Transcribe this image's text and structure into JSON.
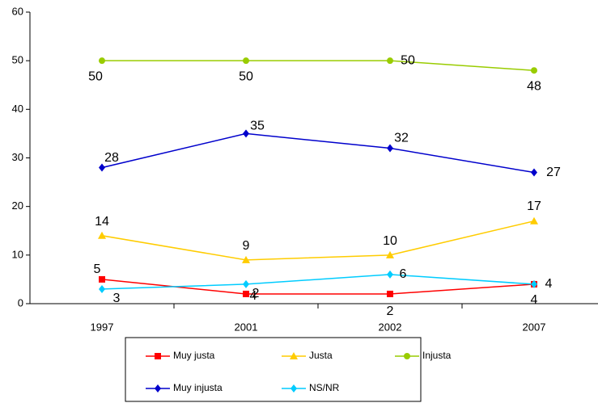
{
  "chart_data": {
    "type": "line",
    "categories": [
      "1997",
      "2001",
      "2002",
      "2007"
    ],
    "series": [
      {
        "name": "Muy justa",
        "color": "#ff0000",
        "marker": "square",
        "values": [
          5,
          2,
          2,
          4
        ]
      },
      {
        "name": "Justa",
        "color": "#ffcc00",
        "marker": "triangle",
        "values": [
          14,
          9,
          10,
          17
        ]
      },
      {
        "name": "Injusta",
        "color": "#99cc00",
        "marker": "circle",
        "values": [
          50,
          50,
          50,
          48
        ]
      },
      {
        "name": "Muy injusta",
        "color": "#0000cc",
        "marker": "diamond",
        "values": [
          28,
          35,
          32,
          27
        ]
      },
      {
        "name": "NS/NR",
        "color": "#00ccff",
        "marker": "diamond",
        "values": [
          3,
          4,
          6,
          4
        ]
      }
    ],
    "ylim": [
      0,
      60
    ],
    "yticks": [
      0,
      10,
      20,
      30,
      40,
      50,
      60
    ],
    "grid": false,
    "legend": "bottom"
  }
}
